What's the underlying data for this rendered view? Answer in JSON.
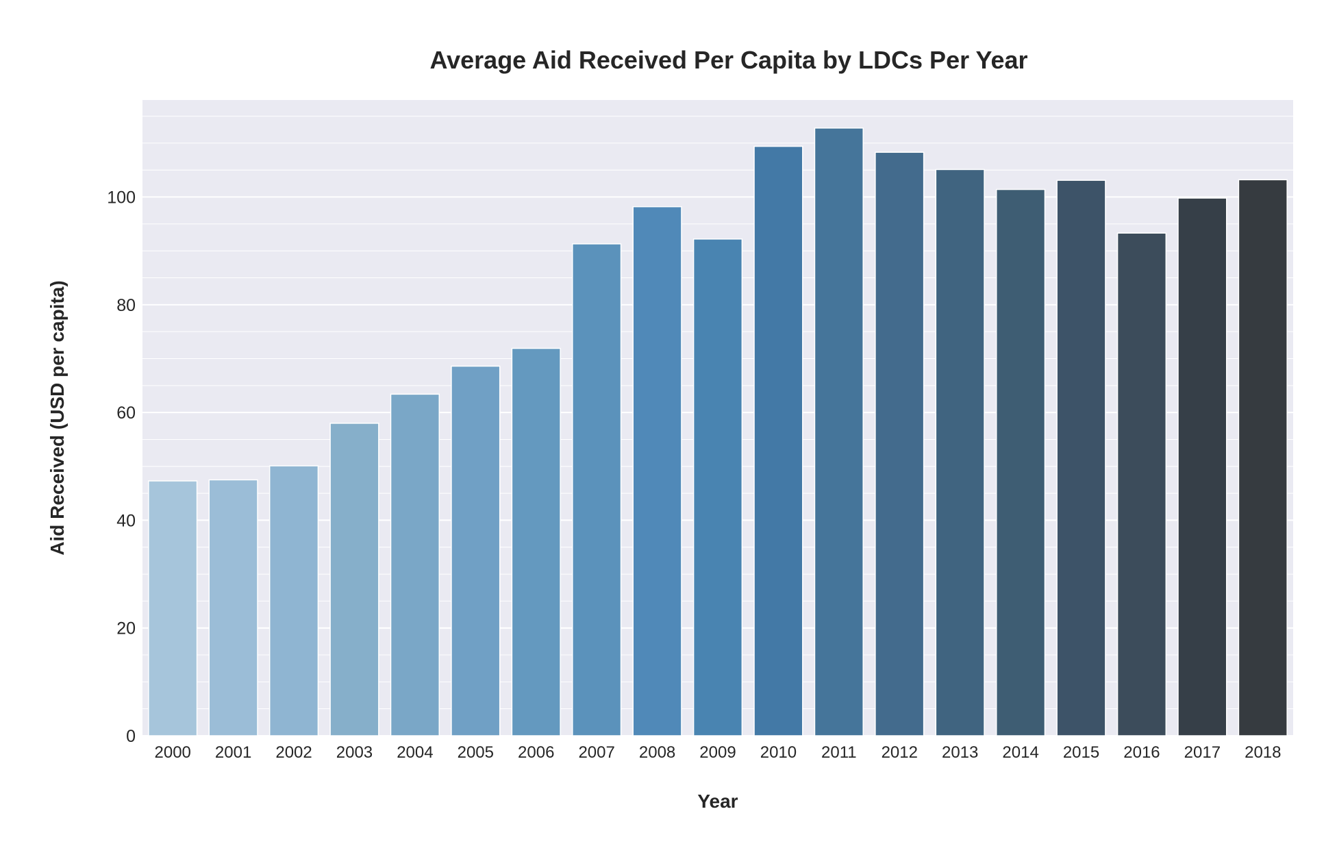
{
  "chart_data": {
    "type": "bar",
    "title": "Average Aid Received Per Capita by LDCs Per Year",
    "xlabel": "Year",
    "ylabel": "Aid Received (USD per capita)",
    "categories": [
      "2000",
      "2001",
      "2002",
      "2003",
      "2004",
      "2005",
      "2006",
      "2007",
      "2008",
      "2009",
      "2010",
      "2011",
      "2012",
      "2013",
      "2014",
      "2015",
      "2016",
      "2017",
      "2018"
    ],
    "values": [
      47.3,
      47.5,
      50.1,
      58.0,
      63.4,
      68.6,
      71.9,
      91.3,
      98.2,
      92.2,
      109.4,
      112.8,
      108.3,
      105.1,
      101.4,
      103.1,
      93.3,
      99.8,
      103.2
    ],
    "ylim": [
      0,
      118
    ],
    "yticks": [
      0,
      20,
      40,
      60,
      80,
      100
    ],
    "yminor_step": 5,
    "grid": true,
    "legend": "none",
    "colors": [
      "#a6c5db",
      "#9bbdd7",
      "#8fb5d2",
      "#86afca",
      "#7aa7c7",
      "#70a0c5",
      "#6499bf",
      "#5b92bb",
      "#5089b8",
      "#4984b1",
      "#4379a6",
      "#45759a",
      "#436b8d",
      "#406480",
      "#3e5d73",
      "#3d5368",
      "#3c4c5b",
      "#363f48",
      "#363b40"
    ],
    "background": "#eaeaf2",
    "gridcolor": "#ffffff"
  }
}
